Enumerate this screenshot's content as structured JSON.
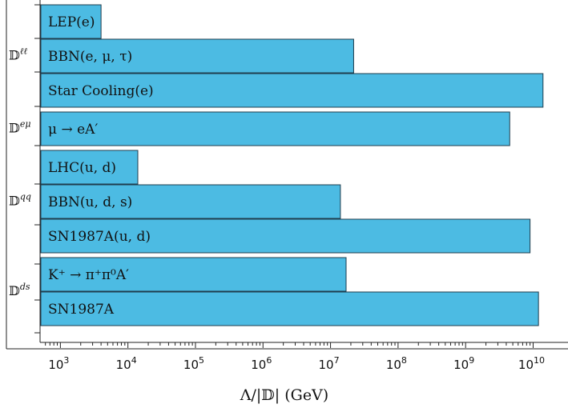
{
  "chart_data": {
    "type": "bar",
    "orientation": "horizontal",
    "x_scale": "log",
    "xlim": [
      500,
      20000000000
    ],
    "xlabel": "Λ/|𝔻| (GeV)",
    "x_ticks": [
      {
        "value": 1000,
        "base": "10",
        "exp": "3"
      },
      {
        "value": 10000,
        "base": "10",
        "exp": "4"
      },
      {
        "value": 100000,
        "base": "10",
        "exp": "5"
      },
      {
        "value": 1000000,
        "base": "10",
        "exp": "6"
      },
      {
        "value": 10000000,
        "base": "10",
        "exp": "7"
      },
      {
        "value": 100000000,
        "base": "10",
        "exp": "8"
      },
      {
        "value": 1000000000,
        "base": "10",
        "exp": "9"
      },
      {
        "value": 10000000000,
        "base": "10",
        "exp": "10"
      }
    ],
    "groups": [
      {
        "label": "𝔻",
        "label_sup": "ℓℓ",
        "bars": [
          {
            "label": "LEP(e)",
            "value": 4000
          },
          {
            "label": "BBN(e, μ, τ)",
            "value": 22000000
          },
          {
            "label": "Star Cooling(e)",
            "value": 14000000000
          }
        ]
      },
      {
        "label": "𝔻",
        "label_sup": "eμ",
        "bars": [
          {
            "label": "μ → eA′",
            "value": 4500000000
          }
        ]
      },
      {
        "label": "𝔻",
        "label_sup": "qq",
        "bars": [
          {
            "label": "LHC(u, d)",
            "value": 14000
          },
          {
            "label": "BBN(u, d, s)",
            "value": 14000000
          },
          {
            "label": "SN1987A(u, d)",
            "value": 9000000000
          }
        ]
      },
      {
        "label": "𝔻",
        "label_sup": "ds",
        "bars": [
          {
            "label": "K⁺ → π⁺π⁰A′",
            "value": 17000000
          },
          {
            "label": "SN1987A",
            "value": 12000000000
          }
        ]
      }
    ]
  }
}
